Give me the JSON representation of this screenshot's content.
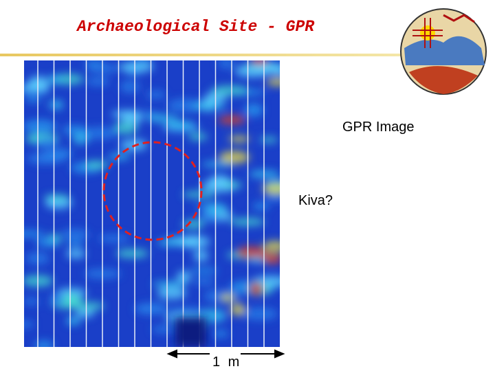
{
  "header": {
    "title": "Archaeological Site - GPR"
  },
  "labels": {
    "image": "GPR Image",
    "feature": "Kiva?",
    "scale": "1 m"
  }
}
